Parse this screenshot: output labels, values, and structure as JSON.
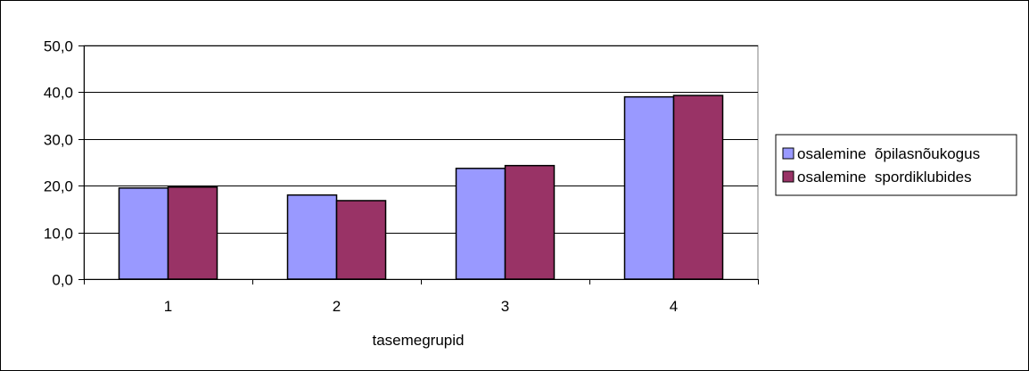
{
  "chart_data": {
    "type": "bar",
    "title": "",
    "xlabel": "tasemegrupid",
    "ylabel": "",
    "categories": [
      "1",
      "2",
      "3",
      "4"
    ],
    "series": [
      {
        "name": "osalemine  õpilasnõukogus",
        "values": [
          19.5,
          18.0,
          23.7,
          39.0
        ],
        "color": "#9999ff"
      },
      {
        "name": "osalemine  spordiklubides",
        "values": [
          19.7,
          16.8,
          24.3,
          39.3
        ],
        "color": "#993366"
      }
    ],
    "ylim": [
      0,
      50
    ],
    "yticks": [
      "0,0",
      "10,0",
      "20,0",
      "30,0",
      "40,0",
      "50,0"
    ],
    "ytick_values": [
      0,
      10,
      20,
      30,
      40,
      50
    ],
    "grid": true,
    "legend_position": "right"
  }
}
